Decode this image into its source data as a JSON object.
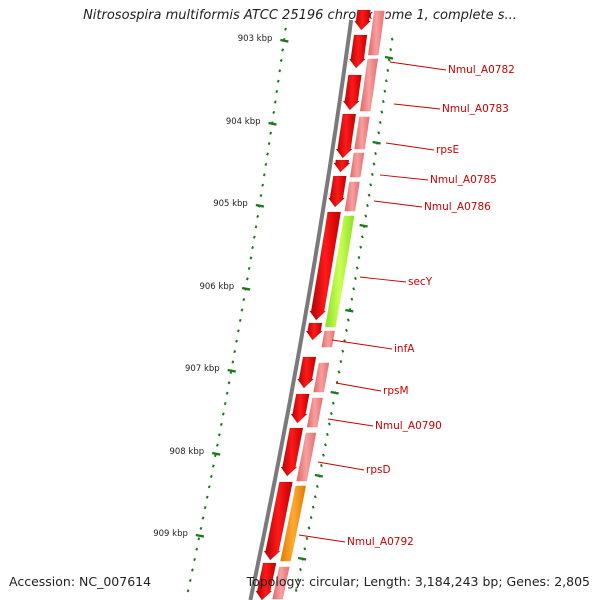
{
  "title": "Nitrosospira multiformis ATCC 25196 chromosome 1, complete s...",
  "footer": {
    "accession": "Accession: NC_007614",
    "summary": "Topology: circular; Length: 3,184,243 bp; Genes: 2,805"
  },
  "colors": {
    "backbone": "#7a7a7a",
    "cds": "#ee0000",
    "cds_light": "#f08a8a",
    "secY": "#aaff33",
    "Nmul_A0792": "#ff9900",
    "label": "#cc0000",
    "tick": "#1a7a1a"
  },
  "kbp_labels": [
    "903 kbp",
    "904 kbp",
    "905 kbp",
    "906 kbp",
    "907 kbp",
    "908 kbp",
    "909 kbp"
  ],
  "gene_labels": [
    "Nmul_A0782",
    "Nmul_A0783",
    "rpsE",
    "Nmul_A0785",
    "Nmul_A0786",
    "secY",
    "infA",
    "rpsM",
    "Nmul_A0790",
    "rpsD",
    "Nmul_A0792"
  ]
}
